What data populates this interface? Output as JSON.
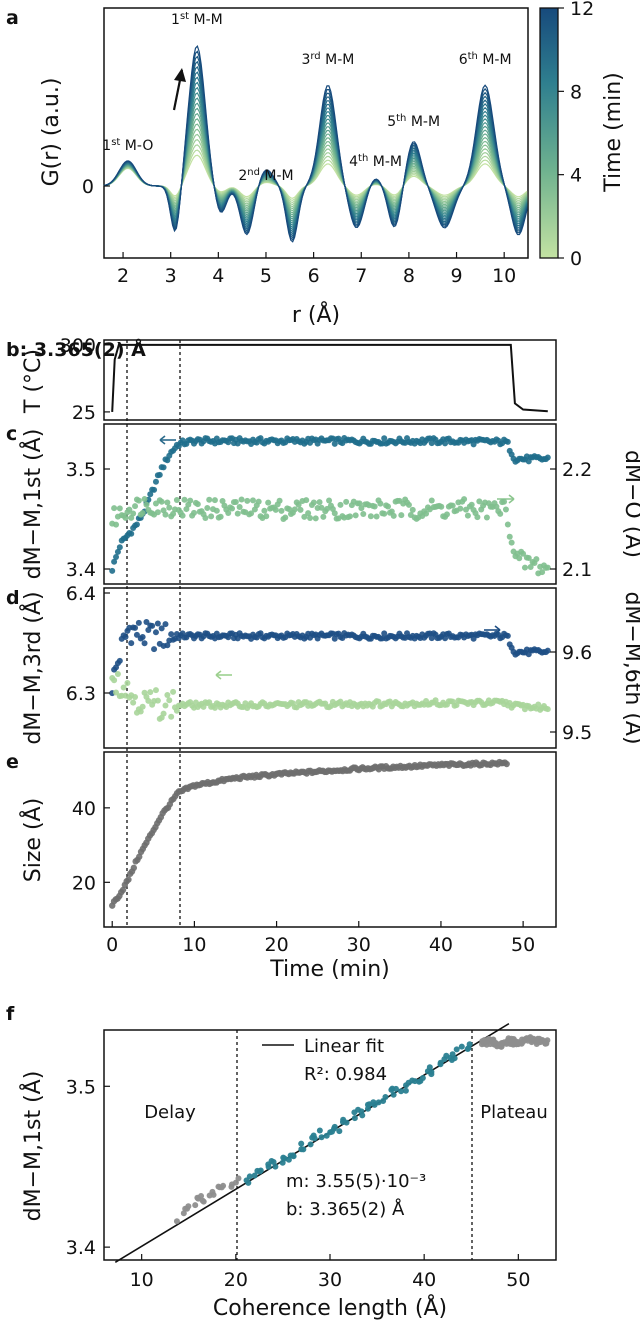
{
  "chart_data": [
    {
      "panel": "a",
      "type": "line",
      "xlabel": "r (Å)",
      "ylabel": "G(r) (a.u.)",
      "xlim": [
        1.6,
        10.5
      ],
      "x_ticks": [
        2,
        3,
        4,
        5,
        6,
        7,
        8,
        9,
        10
      ],
      "y_ticks": [
        0
      ],
      "colorbar": {
        "label": "Time (min)",
        "ticks": [
          0,
          4,
          8,
          12
        ],
        "colors": [
          "#c3e2a2",
          "#6fb28f",
          "#2f7f8f",
          "#174a7c"
        ]
      },
      "peaks": [
        {
          "label": "1st M-O",
          "r": 2.1
        },
        {
          "label": "1st M-M",
          "r": 3.55
        },
        {
          "label": "2nd M-M",
          "r": 5.0
        },
        {
          "label": "3rd M-M",
          "r": 6.3
        },
        {
          "label": "4th M-M",
          "r": 7.3
        },
        {
          "label": "5th M-M",
          "r": 8.1
        },
        {
          "label": "6th M-M",
          "r": 9.6
        }
      ]
    },
    {
      "panel": "b",
      "type": "line",
      "ylabel": "T (°C)",
      "y_ticks": [
        25,
        300
      ],
      "series": [
        {
          "x": [
            0,
            0.3,
            0.8,
            48.5,
            49,
            50,
            53
          ],
          "y": [
            25,
            240,
            300,
            300,
            60,
            35,
            28
          ]
        }
      ]
    },
    {
      "panel": "c",
      "type": "scatter",
      "ylabel_left": "dM−M,1st (Å)",
      "ylabel_right": "dM−O (Å)",
      "left_ticks": [
        3.4,
        3.5
      ],
      "right_ticks": [
        2.1,
        2.2
      ],
      "series": [
        {
          "axis": "left",
          "color": "#1f6e8c",
          "x": [
            0,
            1,
            2,
            3,
            4,
            5,
            6,
            7,
            8,
            10,
            20,
            30,
            40,
            48,
            49,
            53
          ],
          "y": [
            3.4,
            3.425,
            3.435,
            3.445,
            3.46,
            3.48,
            3.5,
            3.515,
            3.525,
            3.528,
            3.528,
            3.528,
            3.528,
            3.527,
            3.51,
            3.51
          ]
        },
        {
          "axis": "right",
          "color": "#7fbf8e",
          "x": [
            0,
            1,
            2,
            4,
            10,
            20,
            30,
            40,
            48,
            49,
            53
          ],
          "y": [
            2.15,
            2.155,
            2.16,
            2.165,
            2.16,
            2.16,
            2.16,
            2.16,
            2.16,
            2.11,
            2.1
          ]
        }
      ]
    },
    {
      "panel": "d",
      "type": "scatter",
      "ylabel_left": "dM−M,3rd (Å)",
      "ylabel_right": "dM−M,6th (Å)",
      "left_ticks": [
        6.3,
        6.4
      ],
      "right_ticks": [
        9.5,
        9.6
      ],
      "series": [
        {
          "axis": "right",
          "color": "#1e4f85",
          "x": [
            0,
            1,
            2,
            4,
            8,
            20,
            30,
            40,
            48,
            49,
            53
          ],
          "y": [
            9.56,
            9.6,
            9.63,
            9.62,
            9.62,
            9.62,
            9.62,
            9.62,
            9.62,
            9.6,
            9.6
          ]
        },
        {
          "axis": "left",
          "color": "#a8d59a",
          "x": [
            0,
            1,
            2,
            4,
            8,
            20,
            30,
            40,
            48,
            49,
            53
          ],
          "y": [
            6.32,
            6.31,
            6.3,
            6.29,
            6.288,
            6.288,
            6.289,
            6.29,
            6.29,
            6.287,
            6.285
          ]
        }
      ]
    },
    {
      "panel": "e",
      "type": "scatter",
      "ylabel": "Size (Å)",
      "xlabel": "Time (min)",
      "xlim": [
        -1,
        54
      ],
      "x_ticks": [
        0,
        10,
        20,
        30,
        40,
        50
      ],
      "y_ticks": [
        20,
        40
      ],
      "series": [
        {
          "color": "#6e6e6e",
          "x": [
            0,
            1,
            2,
            3,
            4,
            5,
            6,
            7,
            8,
            10,
            15,
            20,
            30,
            40,
            48
          ],
          "y": [
            14,
            17,
            21,
            26,
            30,
            34,
            38,
            41,
            44,
            46,
            48,
            49,
            50.5,
            51.5,
            52
          ]
        }
      ]
    },
    {
      "panel": "f",
      "type": "scatter",
      "xlabel": "Coherence length (Å)",
      "ylabel": "dM−M,1st (Å)",
      "xlim": [
        6,
        54
      ],
      "x_ticks": [
        10,
        20,
        30,
        40,
        50
      ],
      "y_ticks": [
        3.4,
        3.5
      ],
      "vlines": [
        20,
        45
      ],
      "regions": [
        "Delay",
        "Plateau"
      ],
      "legend": {
        "label": "Linear fit",
        "r2": "R²: 0.984"
      },
      "fit": {
        "m": "m: 3.55(5)·10⁻³",
        "b": "b: 3.365(2) Å"
      },
      "series": [
        {
          "name": "delay",
          "color": "#8e8e8e",
          "x": [
            14,
            15,
            16,
            17,
            18,
            19,
            20
          ],
          "y": [
            3.418,
            3.425,
            3.428,
            3.432,
            3.435,
            3.44,
            3.44
          ]
        },
        {
          "name": "growth",
          "color": "#2a7f91",
          "x": [
            21,
            23,
            25,
            27,
            29,
            31,
            33,
            35,
            37,
            39,
            41,
            43,
            45
          ],
          "y": [
            3.44,
            3.448,
            3.455,
            3.462,
            3.47,
            3.475,
            3.483,
            3.49,
            3.497,
            3.503,
            3.511,
            3.519,
            3.525
          ]
        },
        {
          "name": "plateau",
          "color": "#8e8e8e",
          "x": [
            46,
            47,
            48,
            49,
            50,
            51,
            52,
            53
          ],
          "y": [
            3.527,
            3.528,
            3.526,
            3.528,
            3.527,
            3.529,
            3.528,
            3.527
          ]
        }
      ]
    }
  ],
  "labels": {
    "a": "a",
    "b": "b: 3.365(2) Å",
    "c": "c",
    "d": "d",
    "e": "e",
    "f": "f",
    "a_xlabel": "r (Å)",
    "a_ylabel": "G(r) (a.u.)",
    "cbar_label": "Time (min)",
    "b_ylabel": "T (°C)",
    "c_left": "dM−M,1st (Å)",
    "c_right": "dM−O (Å)",
    "d_left": "dM−M,3rd (Å)",
    "d_right": "dM−M,6th (Å)",
    "e_ylabel": "Size (Å)",
    "e_xlabel": "Time (min)",
    "f_xlabel": "Coherence length (Å)",
    "f_ylabel": "dM−M,1st (Å)",
    "delay": "Delay",
    "plateau": "Plateau",
    "legend": "Linear fit",
    "r2": "R²: 0.984",
    "m": "m: 3.55(5)·10⁻³"
  }
}
